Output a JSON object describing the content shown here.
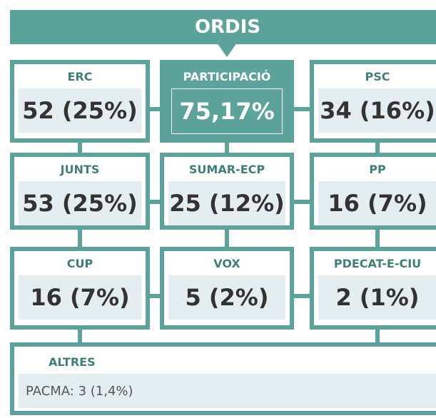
{
  "header": {
    "title": "ORDIS"
  },
  "boxes": [
    {
      "label": "ERC",
      "value": "52 (25%)"
    },
    {
      "label": "PARTICIPACIÓ",
      "value": "75,17%"
    },
    {
      "label": "PSC",
      "value": "34 (16%)"
    },
    {
      "label": "JUNTS",
      "value": "53 (25%)"
    },
    {
      "label": "SUMAR-ECP",
      "value": "25 (12%)"
    },
    {
      "label": "PP",
      "value": "16 (7%)"
    },
    {
      "label": "CUP",
      "value": "16 (7%)"
    },
    {
      "label": "VOX",
      "value": "5 (2%)"
    },
    {
      "label": "PDECAT-E-CIU",
      "value": "2 (1%)"
    }
  ],
  "others": {
    "label": "ALTRES",
    "text": "PACMA: 3 (1,4%)"
  }
}
